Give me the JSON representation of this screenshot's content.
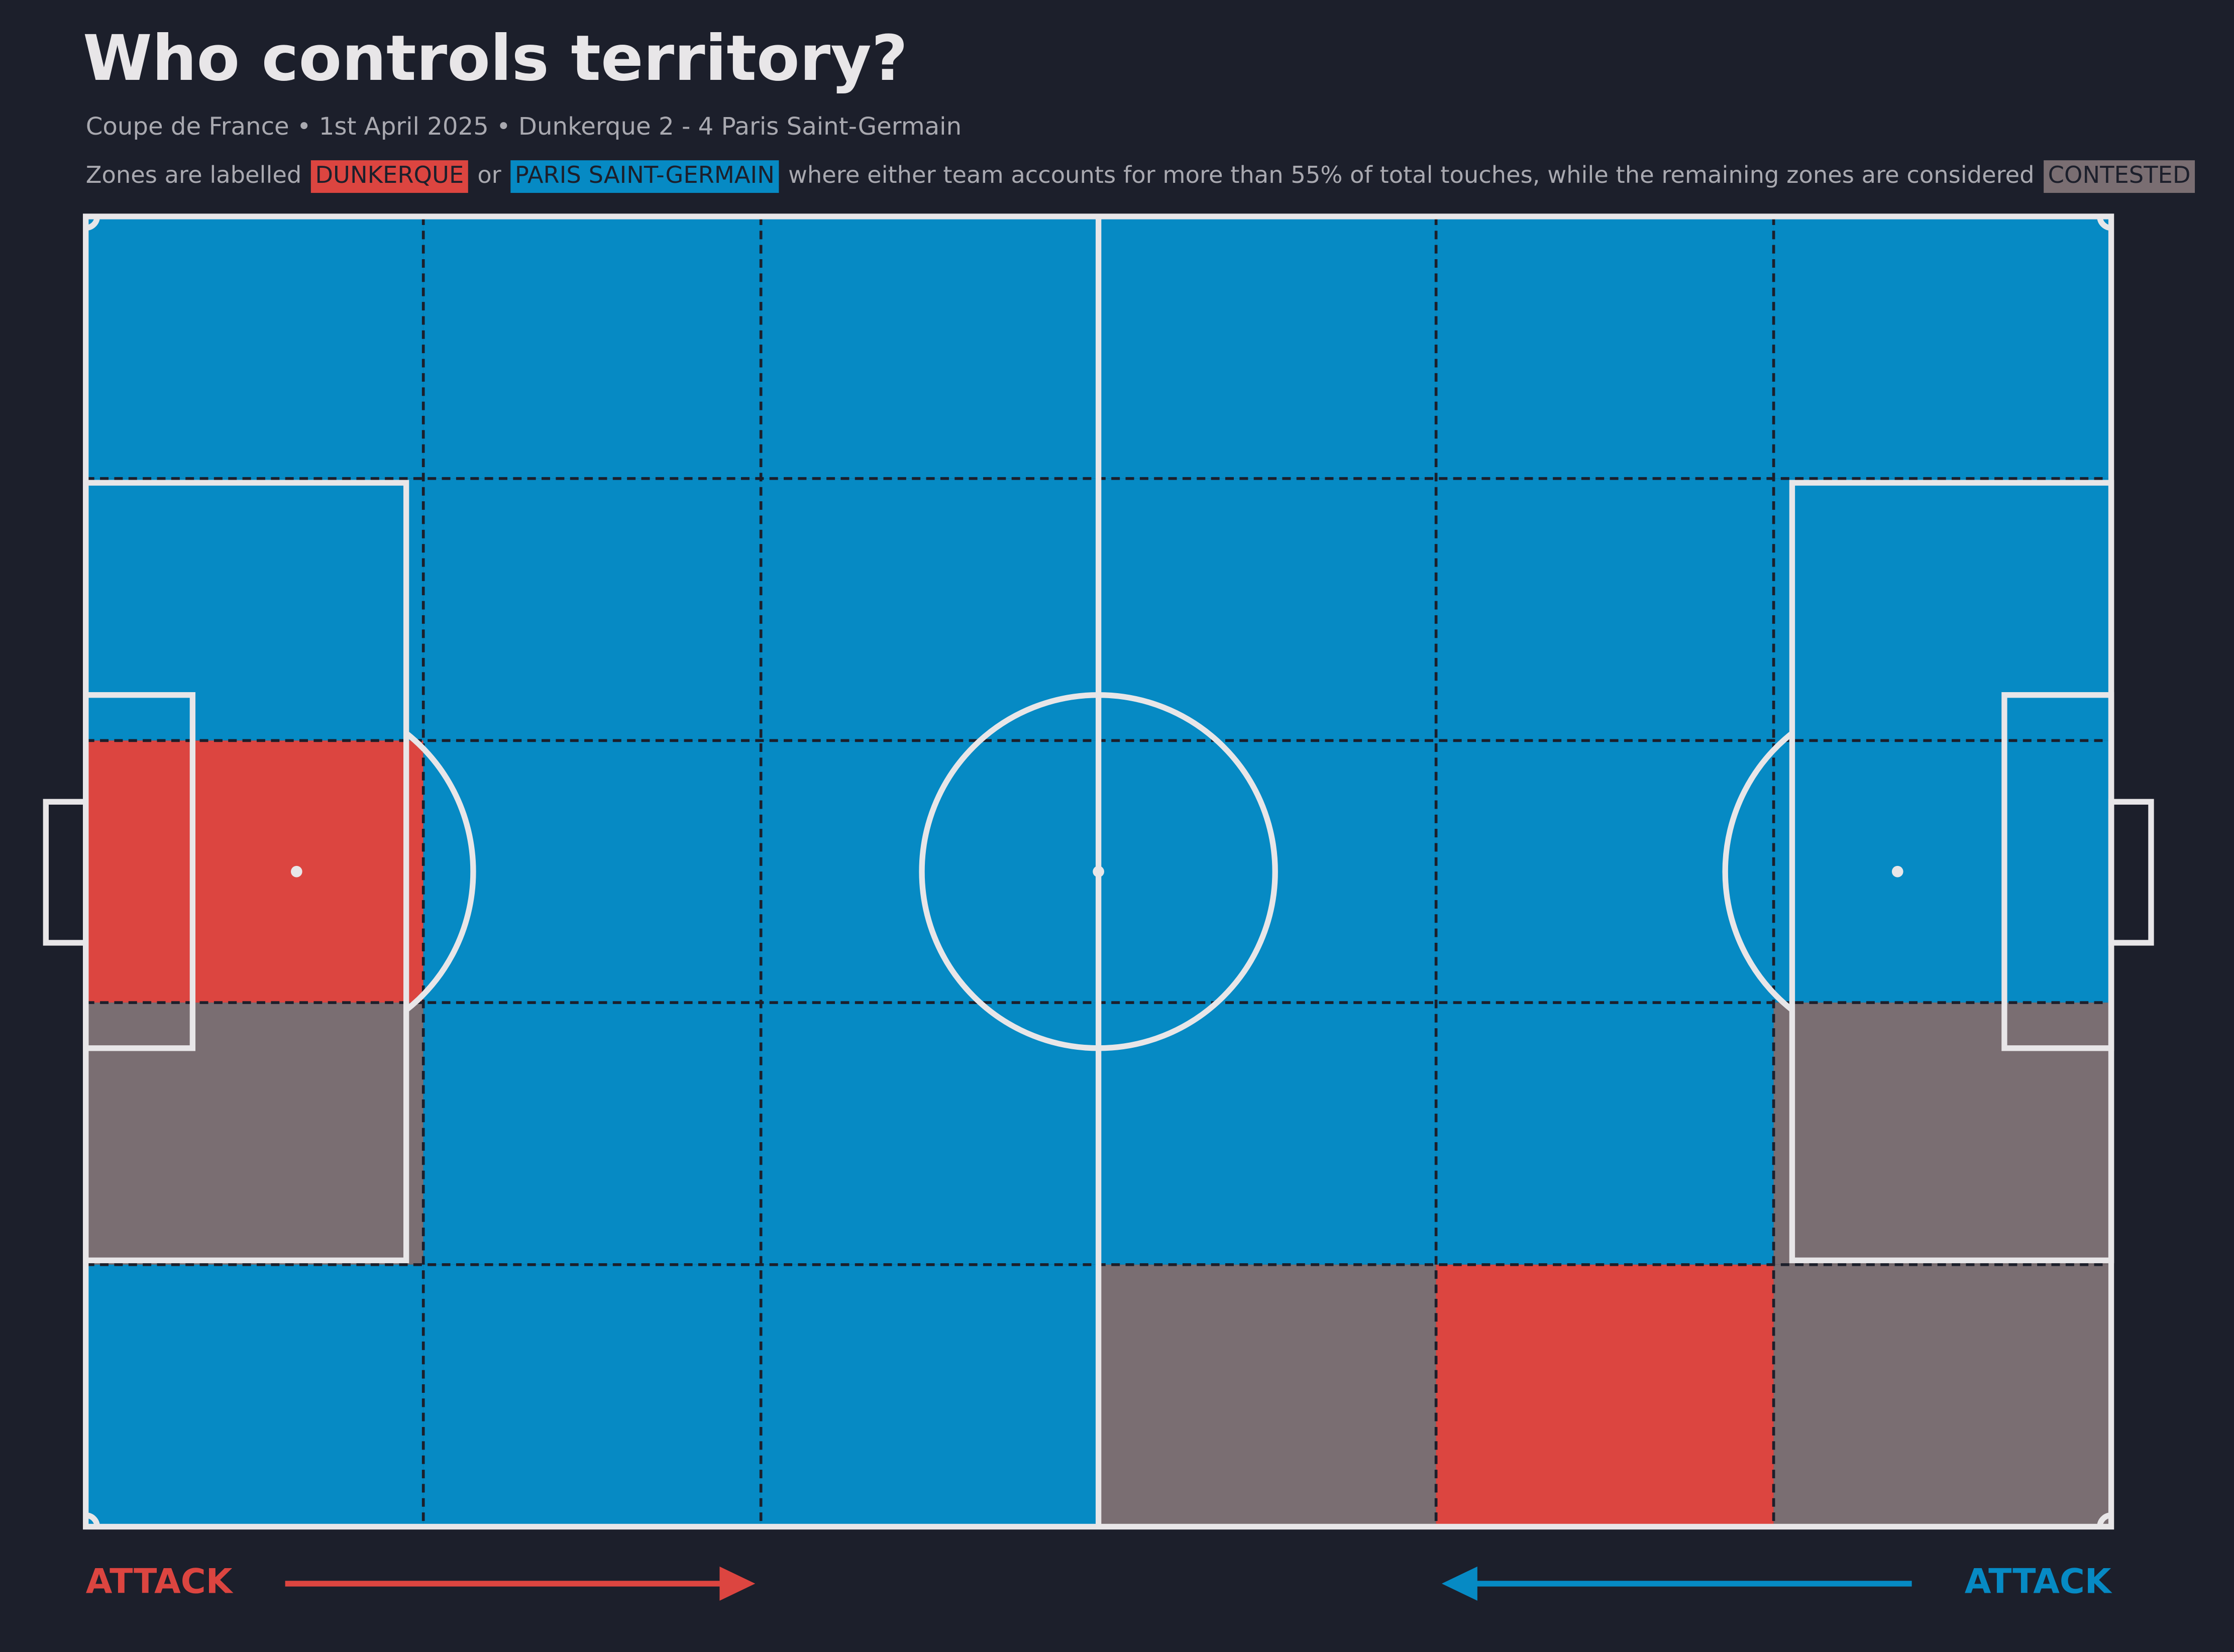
{
  "chart_data": {
    "type": "pitch-zones",
    "title": "Who controls territory?",
    "subtitle": "Coupe de France • 1st April 2025 • Dunkerque 2 - 4 Paris Saint-Germain",
    "description": [
      "Zones are labelled",
      "or",
      "where either team accounts for more than 55% of total touches, while the remaining zones are considered"
    ],
    "legend": [
      {
        "name": "DUNKERQUE",
        "color": "#dc4540"
      },
      {
        "name": "PARIS SAINT-GERMAIN",
        "color": "#068ac4"
      },
      {
        "name": "CONTESTED",
        "color": "#7a6e72"
      }
    ],
    "zones": [
      [
        "PARIS SAINT-GERMAIN",
        "PARIS SAINT-GERMAIN",
        "PARIS SAINT-GERMAIN",
        "PARIS SAINT-GERMAIN",
        "PARIS SAINT-GERMAIN",
        "PARIS SAINT-GERMAIN"
      ],
      [
        "PARIS SAINT-GERMAIN",
        "PARIS SAINT-GERMAIN",
        "PARIS SAINT-GERMAIN",
        "PARIS SAINT-GERMAIN",
        "PARIS SAINT-GERMAIN",
        "PARIS SAINT-GERMAIN"
      ],
      [
        "DUNKERQUE",
        "PARIS SAINT-GERMAIN",
        "PARIS SAINT-GERMAIN",
        "PARIS SAINT-GERMAIN",
        "PARIS SAINT-GERMAIN",
        "PARIS SAINT-GERMAIN"
      ],
      [
        "CONTESTED",
        "PARIS SAINT-GERMAIN",
        "PARIS SAINT-GERMAIN",
        "PARIS SAINT-GERMAIN",
        "PARIS SAINT-GERMAIN",
        "CONTESTED"
      ],
      [
        "PARIS SAINT-GERMAIN",
        "PARIS SAINT-GERMAIN",
        "PARIS SAINT-GERMAIN",
        "CONTESTED",
        "DUNKERQUE",
        "CONTESTED"
      ]
    ],
    "attack_labels": [
      "ATTACK",
      "ATTACK"
    ]
  }
}
